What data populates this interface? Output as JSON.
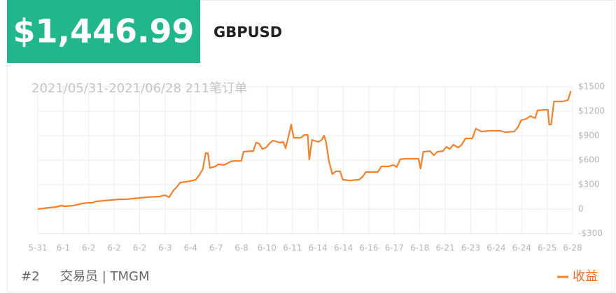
{
  "header": {
    "amount": "$1,446.99",
    "symbol": "GBPUSD"
  },
  "chart_data": {
    "type": "line",
    "subtitle": "2021/05/31-2021/06/28 211笔订单",
    "xlim": [
      0,
      21
    ],
    "xticks": [
      {
        "value": 0,
        "label": "5-31"
      },
      {
        "value": 1,
        "label": "6-1"
      },
      {
        "value": 2,
        "label": "6-2"
      },
      {
        "value": 3,
        "label": "6-2"
      },
      {
        "value": 4,
        "label": "6-2"
      },
      {
        "value": 5,
        "label": "6-3"
      },
      {
        "value": 6,
        "label": "6-4"
      },
      {
        "value": 7,
        "label": "6-7"
      },
      {
        "value": 8,
        "label": "6-8"
      },
      {
        "value": 9,
        "label": "6-10"
      },
      {
        "value": 10,
        "label": "6-11"
      },
      {
        "value": 11,
        "label": "6-14"
      },
      {
        "value": 12,
        "label": "6-14"
      },
      {
        "value": 13,
        "label": "6-16"
      },
      {
        "value": 14,
        "label": "6-17"
      },
      {
        "value": 15,
        "label": "6-18"
      },
      {
        "value": 16,
        "label": "6-21"
      },
      {
        "value": 17,
        "label": "6-23"
      },
      {
        "value": 18,
        "label": "6-24"
      },
      {
        "value": 19,
        "label": "6-24"
      },
      {
        "value": 20,
        "label": "6-25"
      },
      {
        "value": 21,
        "label": "6-28"
      }
    ],
    "ylim": [
      -300,
      1500
    ],
    "yticks": [
      {
        "value": -300,
        "label": "-$300"
      },
      0,
      {
        "value": 300,
        "label": "$300"
      },
      {
        "value": 600,
        "label": "$600"
      },
      {
        "value": 900,
        "label": "$900"
      },
      {
        "value": 1200,
        "label": "$1200"
      },
      {
        "value": 1500,
        "label": "$1500"
      }
    ],
    "grid": true,
    "legend": "bottom-right",
    "series": [
      {
        "name": "收益",
        "color": "#f5812b",
        "x": [
          0,
          0.44,
          0.71,
          0.93,
          1.04,
          1.4,
          1.76,
          1.98,
          2.14,
          2.31,
          3.19,
          3.46,
          4.01,
          4.29,
          4.78,
          5.0,
          5.16,
          5.33,
          5.44,
          5.6,
          5.99,
          6.2,
          6.35,
          6.48,
          6.59,
          6.68,
          6.76,
          6.98,
          7.09,
          7.31,
          7.58,
          7.72,
          7.99,
          8.08,
          8.35,
          8.46,
          8.57,
          8.68,
          8.82,
          8.96,
          9.1,
          9.23,
          9.51,
          9.64,
          9.73,
          9.89,
          9.95,
          10.05,
          10.33,
          10.47,
          10.6,
          10.66,
          10.77,
          11.02,
          11.15,
          11.24,
          11.32,
          11.43,
          11.57,
          11.7,
          11.87,
          11.98,
          12.25,
          12.61,
          12.75,
          12.88,
          13.35,
          13.49,
          13.76,
          13.98,
          14.09,
          14.23,
          14.4,
          14.95,
          15.03,
          15.14,
          15.41,
          15.55,
          15.69,
          15.91,
          16.04,
          16.18,
          16.32,
          16.51,
          16.65,
          16.79,
          17.06,
          17.2,
          17.42,
          17.75,
          18.16,
          18.35,
          18.71,
          18.85,
          18.98,
          19.18,
          19.34,
          19.53,
          19.62,
          19.9,
          20.03,
          20.08,
          20.16,
          20.27,
          20.63,
          20.82,
          20.93
        ],
        "values": [
          0,
          17,
          26,
          43,
          34,
          43,
          69,
          77,
          77,
          94,
          120,
          120,
          137,
          146,
          154,
          171,
          146,
          231,
          266,
          326,
          343,
          360,
          420,
          489,
          686,
          686,
          506,
          523,
          549,
          540,
          583,
          591,
          591,
          703,
          711,
          711,
          814,
          806,
          737,
          754,
          806,
          840,
          814,
          823,
          746,
          951,
          1037,
          874,
          874,
          909,
          909,
          609,
          849,
          823,
          849,
          900,
          823,
          591,
          429,
          463,
          463,
          360,
          351,
          360,
          394,
          454,
          454,
          523,
          523,
          540,
          514,
          609,
          617,
          617,
          497,
          703,
          711,
          660,
          703,
          711,
          763,
          737,
          789,
          754,
          789,
          866,
          866,
          986,
          951,
          960,
          960,
          943,
          951,
          1003,
          1089,
          1106,
          1140,
          1114,
          1209,
          1217,
          1217,
          1037,
          1037,
          1320,
          1320,
          1337,
          1449
        ]
      }
    ]
  },
  "footer": {
    "rank": "#2",
    "trader": "交易员 | TMGM"
  }
}
